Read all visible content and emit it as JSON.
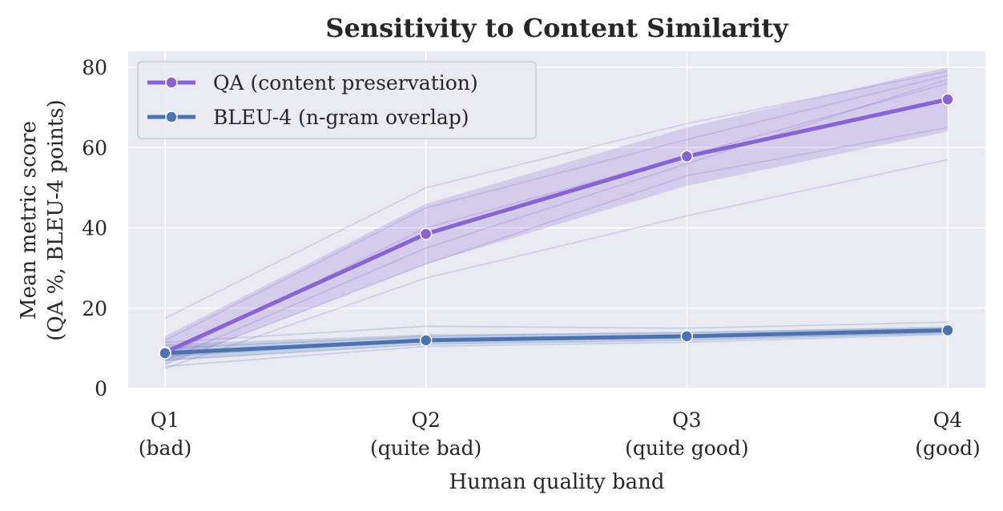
{
  "chart_data": {
    "type": "line",
    "title": "Sensitivity to Content Similarity",
    "xlabel": "Human quality band",
    "ylabel": [
      "Mean metric score",
      "(QA %, BLEU-4 points)"
    ],
    "categories": [
      [
        "Q1",
        "(bad)"
      ],
      [
        "Q2",
        "(quite bad)"
      ],
      [
        "Q3",
        "(quite good)"
      ],
      [
        "Q4",
        "(good)"
      ]
    ],
    "ylim": [
      0,
      84
    ],
    "yticks": [
      0,
      20,
      40,
      60,
      80
    ],
    "grid": true,
    "legend_position": "top-left",
    "series": [
      {
        "name": "QA (content preservation)",
        "color": "#8a63d2",
        "values": [
          9,
          38.5,
          57.8,
          72
        ],
        "band_low": [
          6,
          31,
          50.5,
          64
        ],
        "band_high": [
          13,
          46,
          65,
          80
        ],
        "individual_runs": [
          [
            17.5,
            50,
            66,
            79
          ],
          [
            12,
            45,
            62,
            78
          ],
          [
            8,
            40,
            58,
            76
          ],
          [
            7,
            35,
            56,
            77
          ],
          [
            6,
            31,
            53,
            65
          ],
          [
            5,
            27.5,
            43,
            57
          ]
        ]
      },
      {
        "name": "BLEU-4 (n-gram overlap)",
        "color": "#4c72b0",
        "values": [
          8.8,
          12,
          13,
          14.5
        ],
        "band_low": [
          7,
          11,
          12,
          13.5
        ],
        "band_high": [
          11,
          13.5,
          14,
          15.5
        ],
        "individual_runs": [
          [
            11.5,
            15.5,
            15,
            16.5
          ],
          [
            10,
            13,
            14,
            15
          ],
          [
            8,
            12,
            13,
            14.5
          ],
          [
            7,
            11,
            12,
            14
          ],
          [
            5.5,
            10.5,
            11.5,
            13.5
          ]
        ]
      }
    ]
  }
}
